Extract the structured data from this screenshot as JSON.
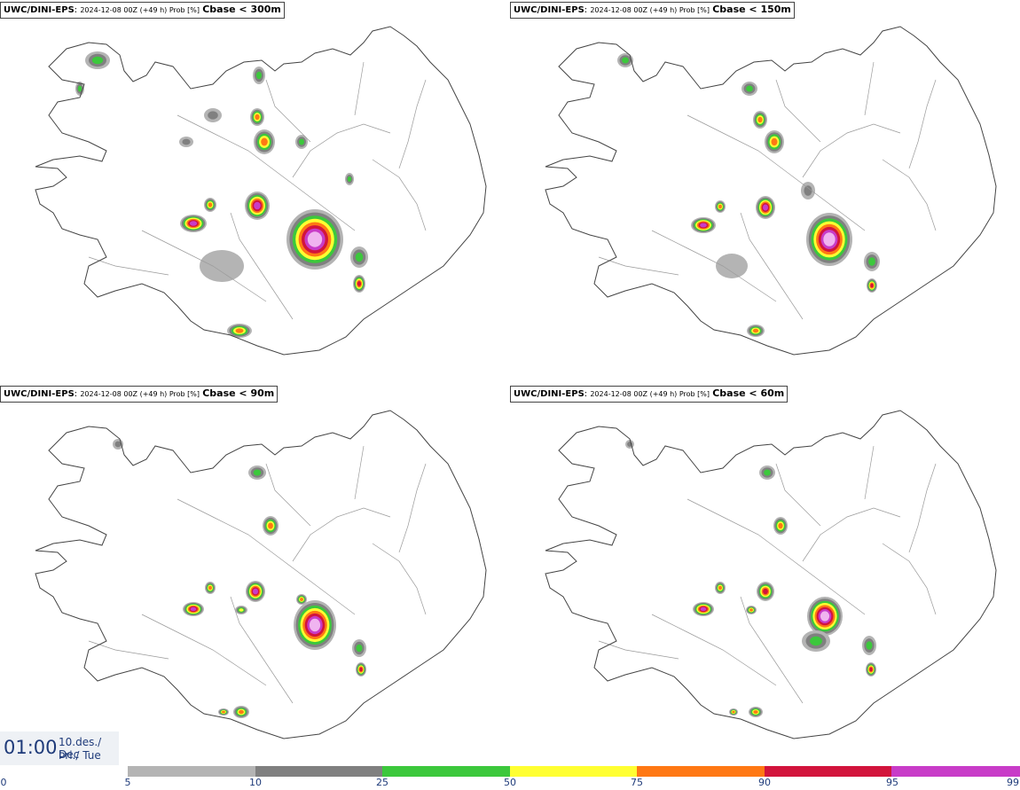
{
  "panels": [
    {
      "model": "UWC/DINI-EPS",
      "run": "2024-12-08 00Z (+49 h) Prob [%]",
      "param": "Cbase < 300m"
    },
    {
      "model": "UWC/DINI-EPS",
      "run": "2024-12-08 00Z (+49 h) Prob [%]",
      "param": "Cbase < 150m"
    },
    {
      "model": "UWC/DINI-EPS",
      "run": "2024-12-08 00Z (+49 h) Prob [%]",
      "param": "Cbase < 90m"
    },
    {
      "model": "UWC/DINI-EPS",
      "run": "2024-12-08 00Z (+49 h) Prob [%]",
      "param": "Cbase < 60m"
    }
  ],
  "time": {
    "clock": "01:00",
    "date_line1": "10.des./ Dec",
    "date_line2": "Þri./ Tue"
  },
  "legend": {
    "ticks": [
      "0",
      "5",
      "10",
      "25",
      "50",
      "75",
      "90",
      "95",
      "99"
    ],
    "colors": [
      "#ffffff",
      "#b4b4b4",
      "#808080",
      "#3cc83c",
      "#ffff32",
      "#ff7814",
      "#d2143c",
      "#c83cc8",
      "#f0b4f0"
    ]
  },
  "map": {
    "region": "Iceland",
    "colors": {
      "coast": "#444444",
      "light_gray": "#b4b4b4",
      "dark_gray": "#808080",
      "green": "#3cc83c",
      "yellow": "#ffff32",
      "orange": "#ff7814",
      "red": "#d2143c",
      "magenta": "#c83cc8",
      "pink": "#f0b4f0"
    }
  }
}
